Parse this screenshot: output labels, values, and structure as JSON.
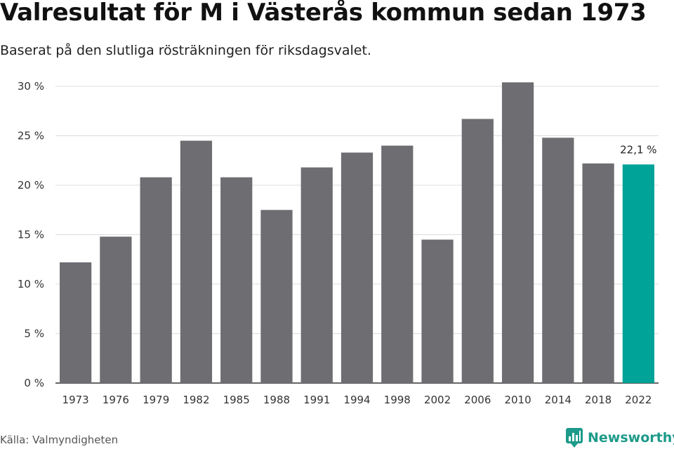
{
  "header": {
    "title": "Valresultat för M i Västerås kommun sedan 1973",
    "subtitle": "Baserat på den slutliga rösträkningen för riksdagsvalet."
  },
  "footer": {
    "source": "Källa: Valmyndigheten",
    "brand": "Newsworthy"
  },
  "colors": {
    "bar": "#6e6d72",
    "highlight": "#00a398",
    "grid": "#dcdcdc",
    "axis": "#333333",
    "brand": "#1d9a8a"
  },
  "chart_data": {
    "type": "bar",
    "title": "Valresultat för M i Västerås kommun sedan 1973",
    "subtitle": "Baserat på den slutliga rösträkningen för riksdagsvalet.",
    "xlabel": "",
    "ylabel": "",
    "categories": [
      "1973",
      "1976",
      "1979",
      "1982",
      "1985",
      "1988",
      "1991",
      "1994",
      "1998",
      "2002",
      "2006",
      "2010",
      "2014",
      "2018",
      "2022"
    ],
    "values": [
      12.2,
      14.8,
      20.8,
      24.5,
      20.8,
      17.5,
      21.8,
      23.3,
      24.0,
      14.5,
      26.7,
      30.4,
      24.8,
      22.2,
      22.1
    ],
    "ylim": [
      0,
      30
    ],
    "yticks": [
      0,
      5,
      10,
      15,
      20,
      25,
      30
    ],
    "ytick_labels": [
      "0 %",
      "5 %",
      "10 %",
      "15 %",
      "20 %",
      "25 %",
      "30 %"
    ],
    "highlight_category": "2022",
    "annotations": [
      {
        "category": "2022",
        "text": "22,1 %"
      }
    ],
    "grid": true,
    "legend": "none"
  }
}
